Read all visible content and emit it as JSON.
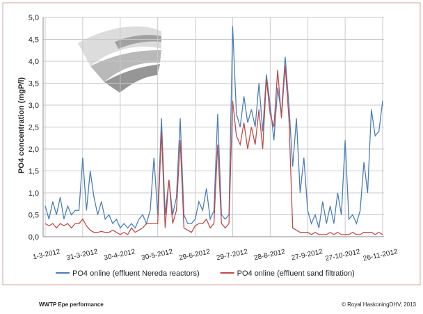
{
  "chart_data": {
    "type": "line",
    "ylabel": "PO4 concentration (mgP/l)",
    "categories": [
      "1-3-2012",
      null,
      null,
      null,
      null,
      null,
      null,
      null,
      null,
      null,
      "31-3-2012",
      null,
      null,
      null,
      null,
      null,
      null,
      null,
      null,
      null,
      "30-4-2012",
      null,
      null,
      null,
      null,
      null,
      null,
      null,
      null,
      null,
      "30-5-2012",
      null,
      null,
      null,
      null,
      null,
      null,
      null,
      null,
      null,
      "29-6-2012",
      null,
      null,
      null,
      null,
      null,
      null,
      null,
      null,
      null,
      "29-7-2012",
      null,
      null,
      null,
      null,
      null,
      null,
      null,
      null,
      null,
      "28-8-2012",
      null,
      null,
      null,
      null,
      null,
      null,
      null,
      null,
      null,
      "27-9-2012",
      null,
      null,
      null,
      null,
      null,
      null,
      null,
      null,
      null,
      "27-10-2012",
      null,
      null,
      null,
      null,
      null,
      null,
      null,
      null,
      null,
      "26-11-2012"
    ],
    "series": [
      {
        "name": "PO4 online (effluent Nereda reactors)",
        "color": "#4a7ebb",
        "values": [
          0.7,
          0.4,
          0.8,
          0.5,
          0.9,
          0.4,
          0.7,
          0.5,
          0.6,
          0.6,
          1.8,
          0.6,
          1.5,
          0.9,
          0.5,
          0.8,
          0.4,
          0.5,
          0.3,
          0.4,
          0.2,
          0.3,
          0.2,
          0.3,
          0.2,
          0.4,
          0.5,
          0.3,
          0.6,
          1.8,
          0.5,
          2.7,
          0.5,
          1.3,
          0.5,
          0.9,
          2.7,
          0.5,
          0.3,
          0.3,
          0.4,
          0.8,
          0.6,
          1.1,
          0.4,
          0.6,
          2.8,
          0.5,
          0.4,
          0.5,
          4.8,
          2.8,
          2.5,
          3.2,
          2.6,
          2.9,
          2.5,
          3.5,
          2.4,
          3.7,
          3.0,
          2.2,
          3.4,
          2.8,
          4.1,
          3.0,
          1.6,
          2.7,
          1.0,
          1.8,
          0.6,
          0.3,
          0.5,
          0.2,
          0.8,
          0.3,
          0.7,
          0.3,
          1.0,
          0.5,
          2.2,
          0.4,
          0.5,
          0.3,
          0.6,
          1.7,
          1.0,
          2.9,
          2.3,
          2.4,
          3.1
        ]
      },
      {
        "name": "PO4 online (effluent sand filtration)",
        "color": "#be4b48",
        "values": [
          0.3,
          0.25,
          0.3,
          0.2,
          0.3,
          0.25,
          0.3,
          0.2,
          0.3,
          0.3,
          0.4,
          0.25,
          0.15,
          0.1,
          0.1,
          0.12,
          0.1,
          0.1,
          0.15,
          0.1,
          0.05,
          0.1,
          0.05,
          0.2,
          0.1,
          0.15,
          0.2,
          0.3,
          0.3,
          0.3,
          0.3,
          2.4,
          0.2,
          1.3,
          0.3,
          0.6,
          2.2,
          0.2,
          0.15,
          0.1,
          0.25,
          0.3,
          0.3,
          0.4,
          0.2,
          0.3,
          2.1,
          0.3,
          0.2,
          0.3,
          3.1,
          2.3,
          2.1,
          2.6,
          2.0,
          2.5,
          2.1,
          2.9,
          2.0,
          3.6,
          2.8,
          2.5,
          3.8,
          2.7,
          3.9,
          2.7,
          0.2,
          0.15,
          0.1,
          0.1,
          0.1,
          0.05,
          0.1,
          0.05,
          0.05,
          0.05,
          0.1,
          0.05,
          0.1,
          0.05,
          0.05,
          0.05,
          0.1,
          0.05,
          0.05,
          0.1,
          0.1,
          0.1,
          0.05,
          0.1,
          0.05
        ]
      }
    ],
    "ylim": [
      0,
      5
    ],
    "yticks": [
      {
        "value": 0,
        "label": "0,0"
      },
      {
        "value": 0.5,
        "label": "0,5"
      },
      {
        "value": 1,
        "label": "1,0"
      },
      {
        "value": 1.5,
        "label": "1,5"
      },
      {
        "value": 2,
        "label": "2,0"
      },
      {
        "value": 2.5,
        "label": "2,5"
      },
      {
        "value": 3,
        "label": "3,0"
      },
      {
        "value": 3.5,
        "label": "3,5"
      },
      {
        "value": 4,
        "label": "4,0"
      },
      {
        "value": 4.5,
        "label": "4,5"
      },
      {
        "value": 5,
        "label": "5,0"
      }
    ],
    "grid": true,
    "legend": "bottom"
  },
  "footer": {
    "left": "WWTP Epe performance",
    "right": "© Royal HaskoningDHV, 2013"
  }
}
